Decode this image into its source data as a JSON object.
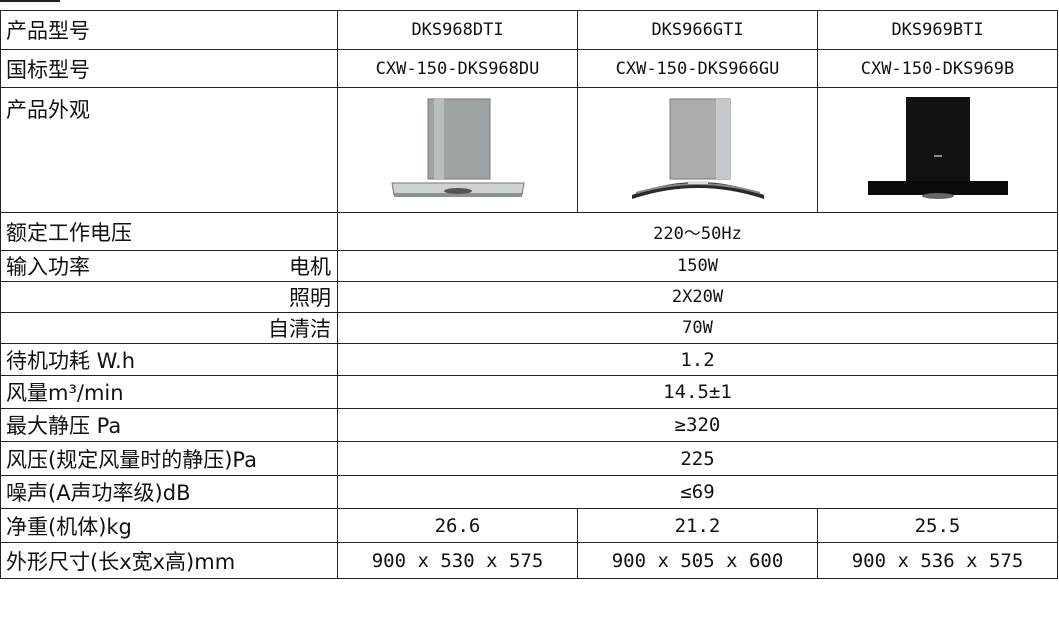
{
  "table": {
    "model_label": "产品型号",
    "models": [
      "DKS968DTI",
      "DKS966GTI",
      "DKS969BTI"
    ],
    "national_label": "国标型号",
    "national_models": [
      "CXW-150-DKS968DU",
      "CXW-150-DKS966GU",
      "CXW-150-DKS969B"
    ],
    "appearance_label": "产品外观",
    "images": [
      "range-hood-silver-flat-icon",
      "range-hood-curved-glass-icon",
      "range-hood-black-icon"
    ],
    "voltage_label": "额定工作电压",
    "voltage_value": "220～50Hz",
    "power_label": "输入功率",
    "motor_label": "电机",
    "motor_value": "150W",
    "lighting_label": "照明",
    "lighting_value": "2X20W",
    "selfclean_label": "自清洁",
    "selfclean_value": "70W",
    "standby_label": "待机功耗 W.h",
    "standby_value": "1.2",
    "airflow_label": "风量m³/min",
    "airflow_value": "14.5±1",
    "maxpressure_label": "最大静压 Pa",
    "maxpressure_value": "≥320",
    "windpressure_label": "风压(规定风量时的静压)Pa",
    "windpressure_value": "225",
    "noise_label": "噪声(A声功率级)dB",
    "noise_value": "≤69",
    "weight_label": "净重(机体)kg",
    "weights": [
      "26.6",
      "21.2",
      "25.5"
    ],
    "dimension_label": "外形尺寸(长x宽x高)mm",
    "dimensions": [
      "900 x 530 x 575",
      "900 x 505 x 600",
      "900 x 536 x 575"
    ]
  },
  "colors": {
    "border": "#222222",
    "steel": "#a9adb0",
    "black": "#111111"
  }
}
